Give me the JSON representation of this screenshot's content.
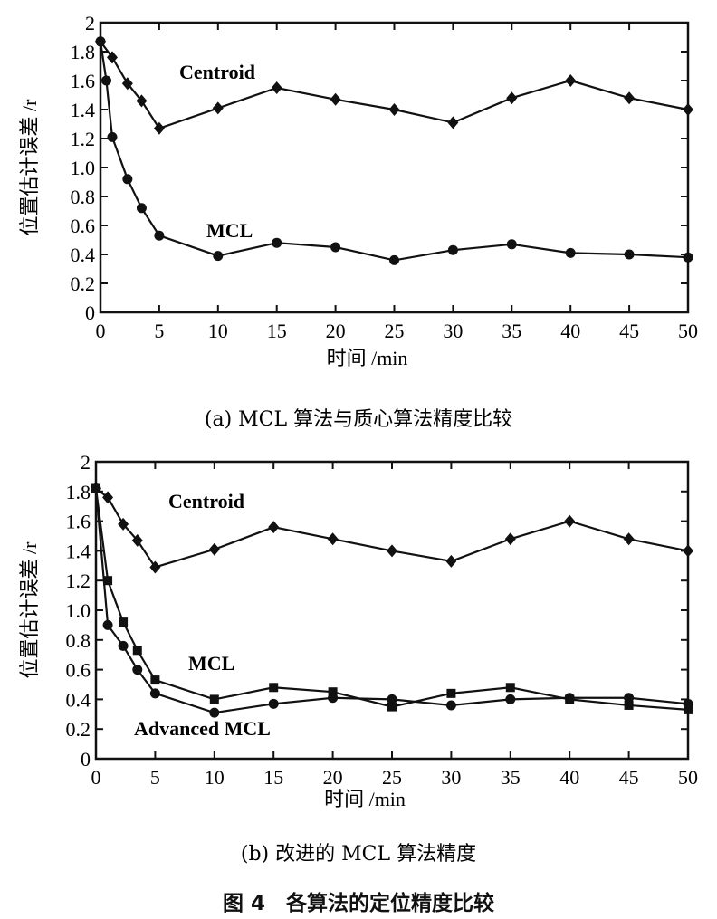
{
  "chart_data": [
    {
      "type": "line",
      "title": "(a) MCL 算法与质心算法精度比较",
      "xlabel": "时间 /min",
      "ylabel": "位置估计误差 /r",
      "xlim": [
        0,
        50
      ],
      "ylim": [
        0,
        2
      ],
      "xticks": [
        "0",
        "5",
        "10",
        "15",
        "20",
        "25",
        "30",
        "35",
        "40",
        "45",
        "50"
      ],
      "yticks": [
        "0",
        "0.2",
        "0.4",
        "0.6",
        "0.8",
        "1.0",
        "1.2",
        "1.4",
        "1.6",
        "1.8",
        "2"
      ],
      "series": [
        {
          "name": "Centroid",
          "marker": "diamond",
          "x": [
            0,
            1,
            2.3,
            3.5,
            5,
            10,
            15,
            20,
            25,
            30,
            35,
            40,
            45,
            50
          ],
          "y": [
            1.87,
            1.76,
            1.58,
            1.46,
            1.27,
            1.41,
            1.55,
            1.47,
            1.4,
            1.31,
            1.48,
            1.6,
            1.48,
            1.4
          ]
        },
        {
          "name": "MCL",
          "marker": "circle",
          "x": [
            0,
            0.5,
            1,
            2.3,
            3.5,
            5,
            10,
            15,
            20,
            25,
            30,
            35,
            40,
            45,
            50
          ],
          "y": [
            1.87,
            1.6,
            1.21,
            0.92,
            0.72,
            0.53,
            0.39,
            0.48,
            0.45,
            0.36,
            0.43,
            0.47,
            0.41,
            0.4,
            0.38
          ]
        }
      ]
    },
    {
      "type": "line",
      "title": "(b) 改进的 MCL 算法精度",
      "xlabel": "时间 /min",
      "ylabel": "位置估计误差 /r",
      "xlim": [
        0,
        50
      ],
      "ylim": [
        0,
        2
      ],
      "xticks": [
        "0",
        "5",
        "10",
        "15",
        "20",
        "25",
        "30",
        "35",
        "40",
        "45",
        "50"
      ],
      "yticks": [
        "0",
        "0.2",
        "0.4",
        "0.6",
        "0.8",
        "1.0",
        "1.2",
        "1.4",
        "1.6",
        "1.8",
        "2"
      ],
      "series": [
        {
          "name": "Centroid",
          "marker": "diamond",
          "x": [
            0,
            1,
            2.3,
            3.5,
            5,
            10,
            15,
            20,
            25,
            30,
            35,
            40,
            45,
            50
          ],
          "y": [
            1.82,
            1.76,
            1.58,
            1.47,
            1.29,
            1.41,
            1.56,
            1.48,
            1.4,
            1.33,
            1.48,
            1.6,
            1.48,
            1.4
          ]
        },
        {
          "name": "MCL",
          "marker": "square",
          "x": [
            0,
            1,
            2.3,
            3.5,
            5,
            10,
            15,
            20,
            25,
            30,
            35,
            40,
            45,
            50
          ],
          "y": [
            1.82,
            1.2,
            0.92,
            0.73,
            0.53,
            0.4,
            0.48,
            0.45,
            0.35,
            0.44,
            0.48,
            0.4,
            0.36,
            0.33
          ]
        },
        {
          "name": "Advanced MCL",
          "marker": "circle",
          "x": [
            0,
            1,
            2.3,
            3.5,
            5,
            10,
            15,
            20,
            25,
            30,
            35,
            40,
            45,
            50
          ],
          "y": [
            1.82,
            0.9,
            0.76,
            0.6,
            0.44,
            0.31,
            0.37,
            0.41,
            0.4,
            0.36,
            0.4,
            0.41,
            0.41,
            0.37
          ]
        }
      ]
    }
  ],
  "figure_caption": "图 4　各算法的定位精度比较"
}
